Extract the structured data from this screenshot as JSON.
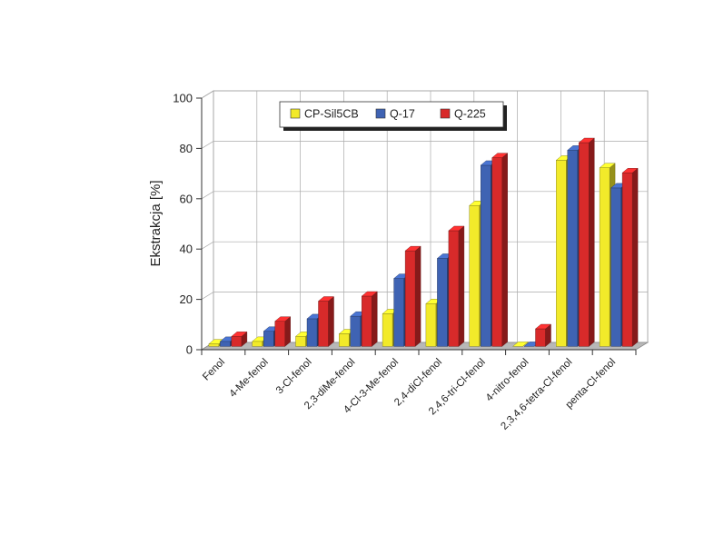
{
  "chart_data": {
    "type": "bar",
    "title": "",
    "xlabel": "",
    "ylabel": "Ekstrakcja [%]",
    "ylim": [
      0,
      100
    ],
    "yticks": [
      0,
      20,
      40,
      60,
      80,
      100
    ],
    "grid": true,
    "legend_position": "top",
    "categories": [
      "Fenol",
      "4-Me-fenol",
      "3-Cl-fenol",
      "2,3-diMe-fenol",
      "4-Cl-3-Me-fenol",
      "2,4-diCl-fenol",
      "2,4,6-tri-Cl-fenol",
      "4-nitro-fenol",
      "2,3,4,6-tetra-Cl-fenol",
      "penta-Cl-fenol"
    ],
    "series": [
      {
        "name": "CP-Sil5CB",
        "color": "#f2ea2a",
        "values": [
          1,
          2,
          4,
          5,
          13,
          17,
          56,
          0,
          74,
          71
        ]
      },
      {
        "name": "Q-17",
        "color": "#3f63b3",
        "values": [
          2,
          6,
          11,
          12,
          27,
          35,
          72,
          0,
          78,
          63
        ]
      },
      {
        "name": "Q-225",
        "color": "#d82a2a",
        "values": [
          4,
          10,
          18,
          20,
          38,
          46,
          75,
          7,
          81,
          69
        ]
      }
    ]
  }
}
